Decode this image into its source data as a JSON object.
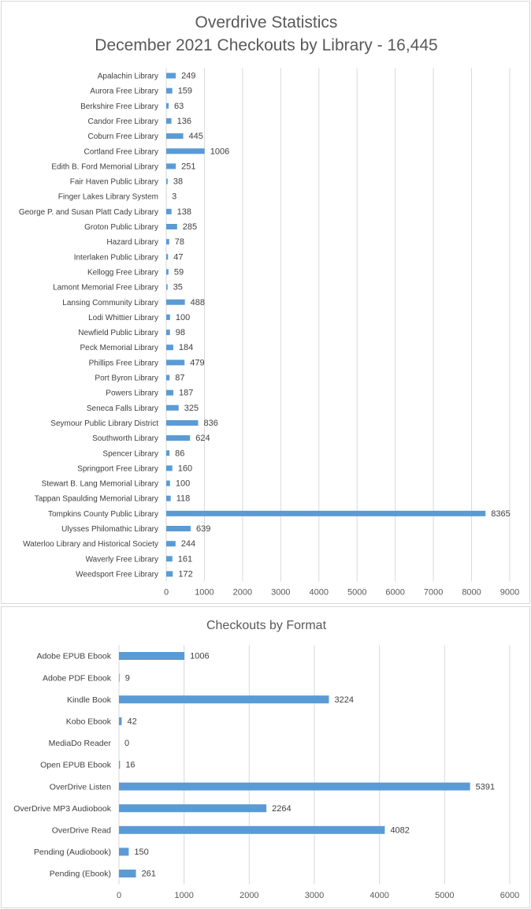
{
  "chart_data": [
    {
      "type": "bar",
      "orientation": "horizontal",
      "title": "Overdrive Statistics",
      "subtitle": "December 2021 Checkouts by Library - 16,445",
      "categories": [
        "Apalachin Library",
        "Aurora Free Library",
        "Berkshire Free Library",
        "Candor Free Library",
        "Coburn Free Library",
        "Cortland Free Library",
        "Edith B. Ford Memorial Library",
        "Fair Haven Public Library",
        "Finger Lakes Library System",
        "George P. and Susan Platt Cady Library",
        "Groton Public Library",
        "Hazard Library",
        "Interlaken Public Library",
        "Kellogg Free Library",
        "Lamont Memorial Free Library",
        "Lansing Community Library",
        "Lodi Whittier Library",
        "Newfield Public Library",
        "Peck Memorial Library",
        "Phillips Free Library",
        "Port Byron Library",
        "Powers Library",
        "Seneca Falls Library",
        "Seymour Public Library District",
        "Southworth Library",
        "Spencer Library",
        "Springport Free Library",
        "Stewart B. Lang Memorial Library",
        "Tappan Spaulding Memorial Library",
        "Tompkins County Public Library",
        "Ulysses Philomathic Library",
        "Waterloo Library and Historical Society",
        "Waverly Free Library",
        "Weedsport Free Library"
      ],
      "values": [
        249,
        159,
        63,
        136,
        445,
        1006,
        251,
        38,
        3,
        138,
        285,
        78,
        47,
        59,
        35,
        488,
        100,
        98,
        184,
        479,
        87,
        187,
        325,
        836,
        624,
        86,
        160,
        100,
        118,
        8365,
        639,
        244,
        161,
        172
      ],
      "xlim": [
        0,
        9000
      ],
      "xticks": [
        0,
        1000,
        2000,
        3000,
        4000,
        5000,
        6000,
        7000,
        8000,
        9000
      ],
      "grid": "vertical",
      "legend": "none",
      "bar_color": "#5b9bd5",
      "data_labels": true
    },
    {
      "type": "bar",
      "orientation": "horizontal",
      "title": "Checkouts by Format",
      "categories": [
        "Adobe EPUB Ebook",
        "Adobe PDF Ebook",
        "Kindle Book",
        "Kobo Ebook",
        "MediaDo Reader",
        "Open EPUB Ebook",
        "OverDrive Listen",
        "OverDrive MP3 Audiobook",
        "OverDrive Read",
        "Pending (Audiobook)",
        "Pending (Ebook)"
      ],
      "values": [
        1006,
        9,
        3224,
        42,
        0,
        16,
        5391,
        2264,
        4082,
        150,
        261
      ],
      "xlim": [
        0,
        6000
      ],
      "xticks": [
        0,
        1000,
        2000,
        3000,
        4000,
        5000,
        6000
      ],
      "grid": "vertical",
      "legend": "none",
      "bar_color": "#5b9bd5",
      "data_labels": true
    }
  ]
}
